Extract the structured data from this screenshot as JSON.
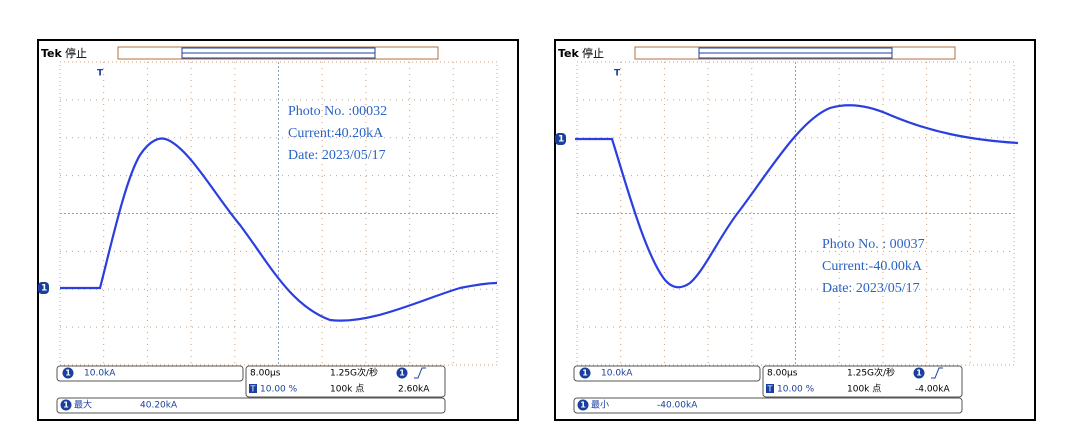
{
  "panels": [
    {
      "brand": "Tek",
      "status": "停止",
      "trigger_marker": "T",
      "channel_marker": "1",
      "annotation": [
        "Photo No. :00032",
        "Current:40.20kA",
        "Date: 2023/05/17"
      ],
      "channel_scale": "10.0kA",
      "timebase": "8.00μs",
      "sample_rate": "1.25G次/秒",
      "trigger_position": "10.00 %",
      "record_length": "100k 点",
      "trigger_level": "2.60kA",
      "measurement": {
        "label": "最大",
        "value": "40.20kA"
      }
    },
    {
      "brand": "Tek",
      "status": "停止",
      "trigger_marker": "T",
      "channel_marker": "1",
      "annotation": [
        "Photo No. : 00037",
        "Current:-40.00kA",
        "Date: 2023/05/17"
      ],
      "channel_scale": "10.0kA",
      "timebase": "8.00μs",
      "sample_rate": "1.25G次/秒",
      "trigger_position": "10.00 %",
      "record_length": "100k 点",
      "trigger_level": "-4.00kA",
      "measurement": {
        "label": "最小",
        "value": "-40.00kA"
      }
    }
  ]
}
